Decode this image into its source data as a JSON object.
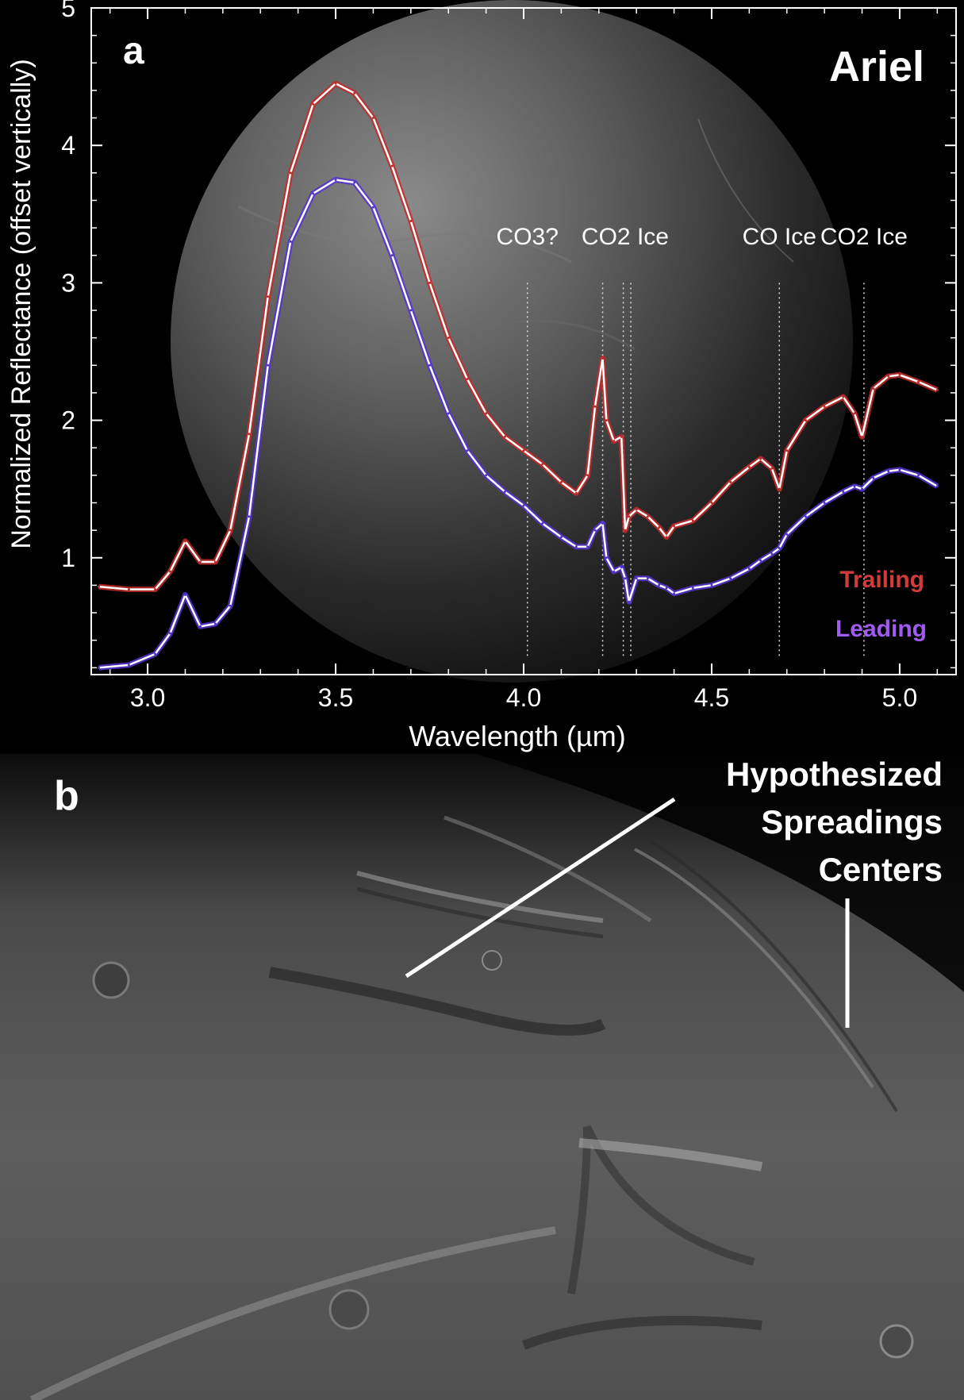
{
  "panel_a": {
    "label": "a",
    "moon_name": "Ariel",
    "absorption_labels": [
      {
        "text": "CO3?",
        "x": 4.01,
        "lines": [
          4.01
        ]
      },
      {
        "text": "CO2 Ice",
        "x": 4.27,
        "lines": [
          4.21,
          4.265,
          4.285
        ]
      },
      {
        "text": "CO Ice",
        "x": 4.68,
        "lines": [
          4.68
        ]
      },
      {
        "text": "CO2 Ice",
        "x": 4.905,
        "lines": [
          4.905
        ]
      }
    ],
    "legend": [
      {
        "label": "Trailing",
        "color": "#d23b3b"
      },
      {
        "label": "Leading",
        "color": "#a05cf0"
      }
    ]
  },
  "panel_b": {
    "label": "b",
    "annotation": [
      "Hypothesized",
      "Spreadings",
      "Centers"
    ]
  },
  "chart_data": {
    "type": "line",
    "xlabel": "Wavelength (µm)",
    "ylabel": "Normalized Reflectance (offset vertically)",
    "xlim": [
      2.85,
      5.15
    ],
    "ylim": [
      0.15,
      5.0
    ],
    "xticks": [
      3.0,
      3.5,
      4.0,
      4.5,
      5.0
    ],
    "xtick_labels": [
      "3.0",
      "3.5",
      "4.0",
      "4.5",
      "5.0"
    ],
    "yticks": [
      1,
      2,
      3,
      4,
      5
    ],
    "ytick_labels": [
      "1",
      "2",
      "3",
      "4",
      "5"
    ],
    "grid": false,
    "legend_position": "bottom-right",
    "series": [
      {
        "name": "Trailing",
        "color": "#c42a2a",
        "x": [
          2.87,
          2.95,
          3.02,
          3.06,
          3.1,
          3.14,
          3.18,
          3.22,
          3.27,
          3.32,
          3.38,
          3.44,
          3.5,
          3.55,
          3.6,
          3.65,
          3.7,
          3.75,
          3.8,
          3.85,
          3.9,
          3.95,
          4.0,
          4.05,
          4.1,
          4.14,
          4.17,
          4.19,
          4.21,
          4.22,
          4.24,
          4.26,
          4.27,
          4.28,
          4.3,
          4.33,
          4.36,
          4.38,
          4.4,
          4.45,
          4.5,
          4.55,
          4.6,
          4.63,
          4.66,
          4.68,
          4.7,
          4.75,
          4.8,
          4.85,
          4.88,
          4.9,
          4.93,
          4.97,
          5.0,
          5.05,
          5.1
        ],
        "y": [
          0.79,
          0.77,
          0.77,
          0.9,
          1.12,
          0.97,
          0.97,
          1.2,
          1.9,
          2.9,
          3.8,
          4.3,
          4.45,
          4.38,
          4.2,
          3.85,
          3.45,
          3.0,
          2.6,
          2.3,
          2.05,
          1.88,
          1.78,
          1.68,
          1.55,
          1.47,
          1.6,
          2.1,
          2.45,
          2.0,
          1.85,
          1.88,
          1.2,
          1.3,
          1.35,
          1.3,
          1.22,
          1.15,
          1.23,
          1.27,
          1.4,
          1.55,
          1.66,
          1.72,
          1.65,
          1.5,
          1.78,
          2.0,
          2.1,
          2.17,
          2.05,
          1.88,
          2.23,
          2.32,
          2.33,
          2.28,
          2.22
        ]
      },
      {
        "name": "Leading",
        "color": "#5533d0",
        "x": [
          2.87,
          2.95,
          3.02,
          3.06,
          3.1,
          3.14,
          3.18,
          3.22,
          3.27,
          3.32,
          3.38,
          3.44,
          3.5,
          3.55,
          3.6,
          3.65,
          3.7,
          3.75,
          3.8,
          3.85,
          3.9,
          3.95,
          4.0,
          4.05,
          4.1,
          4.14,
          4.17,
          4.19,
          4.21,
          4.22,
          4.24,
          4.26,
          4.27,
          4.28,
          4.3,
          4.33,
          4.36,
          4.38,
          4.4,
          4.45,
          4.5,
          4.55,
          4.6,
          4.63,
          4.66,
          4.68,
          4.7,
          4.75,
          4.8,
          4.85,
          4.88,
          4.9,
          4.93,
          4.97,
          5.0,
          5.05,
          5.1
        ],
        "y": [
          0.2,
          0.22,
          0.3,
          0.45,
          0.73,
          0.5,
          0.52,
          0.65,
          1.3,
          2.4,
          3.3,
          3.65,
          3.75,
          3.73,
          3.55,
          3.2,
          2.8,
          2.4,
          2.05,
          1.78,
          1.6,
          1.48,
          1.38,
          1.25,
          1.15,
          1.08,
          1.08,
          1.2,
          1.25,
          1.0,
          0.9,
          0.93,
          0.85,
          0.68,
          0.85,
          0.85,
          0.8,
          0.78,
          0.74,
          0.78,
          0.8,
          0.85,
          0.92,
          0.98,
          1.03,
          1.07,
          1.17,
          1.3,
          1.4,
          1.48,
          1.52,
          1.5,
          1.58,
          1.63,
          1.64,
          1.6,
          1.52
        ]
      }
    ]
  }
}
